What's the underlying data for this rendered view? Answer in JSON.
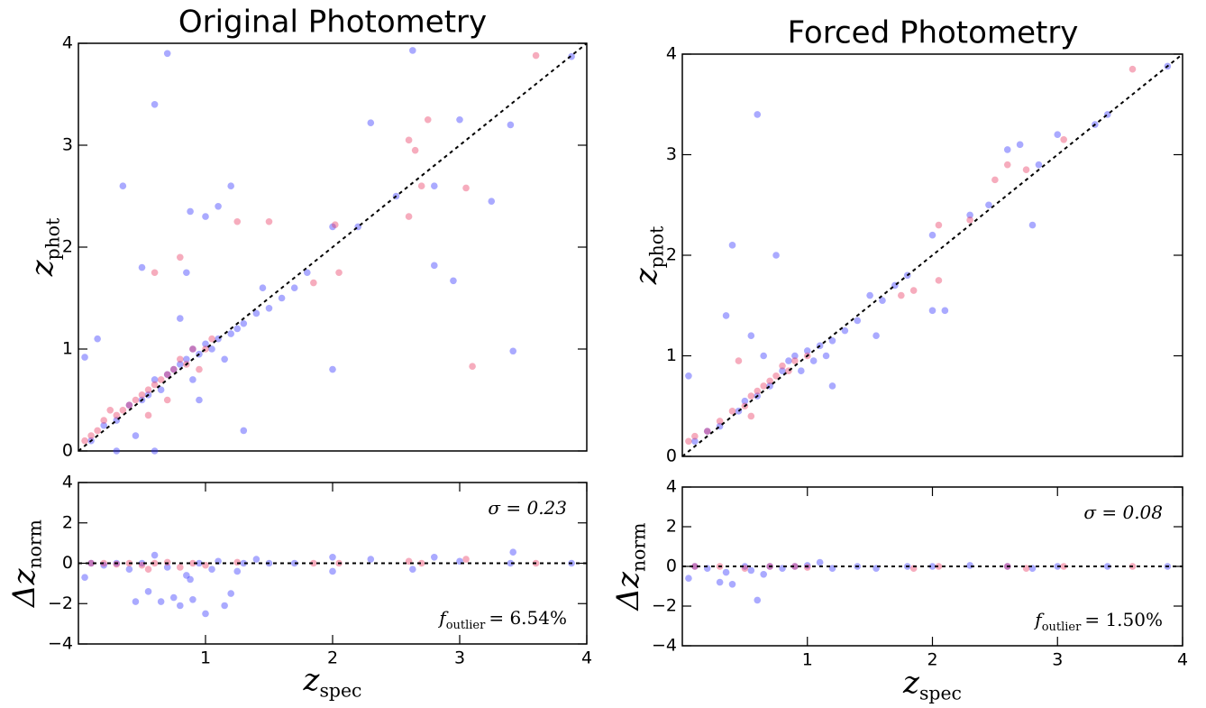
{
  "chart_data": [
    {
      "type": "scatter",
      "title": "Original Photometry",
      "ylabel": {
        "text": "z",
        "sub": "phot"
      },
      "xlim": [
        0,
        4
      ],
      "ylim": [
        0,
        4
      ],
      "yticks": [
        0,
        1,
        2,
        3,
        4
      ],
      "reference": "identity",
      "series": [
        {
          "color": "#2a2aff",
          "x": [
            0.05,
            0.1,
            0.2,
            0.3,
            0.35,
            0.4,
            0.45,
            0.5,
            0.55,
            0.6,
            0.6,
            0.65,
            0.7,
            0.7,
            0.75,
            0.8,
            0.8,
            0.85,
            0.85,
            0.88,
            0.9,
            0.9,
            0.95,
            0.95,
            1.0,
            1.0,
            1.05,
            1.1,
            1.1,
            1.15,
            1.2,
            1.2,
            1.25,
            1.3,
            1.3,
            1.4,
            1.45,
            1.5,
            1.6,
            1.7,
            1.8,
            2.0,
            2.0,
            2.2,
            2.3,
            2.5,
            2.63,
            2.8,
            2.8,
            2.95,
            3.0,
            3.25,
            3.4,
            3.42,
            3.88,
            0.15,
            0.5,
            0.6,
            0.3
          ],
          "values": [
            0.92,
            0.1,
            0.25,
            0.3,
            2.6,
            0.45,
            0.15,
            0.5,
            0.55,
            3.4,
            0.7,
            0.6,
            3.9,
            0.75,
            0.8,
            1.3,
            0.85,
            1.75,
            0.9,
            2.35,
            0.7,
            1.0,
            0.95,
            0.5,
            1.05,
            2.3,
            1.0,
            1.1,
            2.4,
            0.9,
            1.15,
            2.6,
            1.2,
            1.25,
            0.2,
            1.35,
            1.6,
            1.4,
            1.5,
            1.6,
            1.75,
            2.2,
            0.8,
            2.2,
            3.22,
            2.5,
            3.93,
            2.6,
            1.82,
            1.67,
            3.25,
            2.45,
            3.2,
            0.98,
            3.87,
            1.1,
            1.8,
            0.0,
            0.0
          ]
        },
        {
          "color": "#e8305a",
          "x": [
            0.05,
            0.1,
            0.15,
            0.2,
            0.25,
            0.3,
            0.35,
            0.4,
            0.45,
            0.5,
            0.55,
            0.6,
            0.6,
            0.65,
            0.7,
            0.7,
            0.75,
            0.8,
            0.8,
            0.85,
            0.9,
            0.95,
            1.0,
            1.05,
            1.25,
            1.5,
            1.85,
            2.02,
            2.05,
            2.6,
            2.65,
            2.7,
            2.75,
            2.6,
            3.1,
            3.05,
            3.6,
            0.55
          ],
          "values": [
            0.1,
            0.15,
            0.2,
            0.3,
            0.4,
            0.35,
            0.4,
            0.45,
            0.5,
            0.55,
            0.6,
            1.75,
            0.65,
            0.7,
            0.75,
            0.5,
            0.8,
            1.9,
            0.9,
            0.85,
            1.0,
            0.8,
            1.0,
            1.1,
            2.25,
            2.25,
            1.65,
            2.22,
            1.75,
            3.05,
            2.95,
            2.6,
            3.25,
            2.3,
            0.83,
            2.58,
            3.88,
            0.35
          ]
        }
      ]
    },
    {
      "type": "scatter",
      "ylabel": {
        "text": "Δz",
        "sub": "norm"
      },
      "xlabel": {
        "text": "z",
        "sub": "spec"
      },
      "xlim": [
        0,
        4
      ],
      "ylim": [
        -4,
        4
      ],
      "xticks": [
        1,
        2,
        3,
        4
      ],
      "yticks": [
        {
          "value": -4,
          "label": "−4"
        },
        {
          "value": -2,
          "label": "−2"
        },
        0,
        2,
        4
      ],
      "reference": "zero",
      "annotations": [
        {
          "text": "σ = 0.23"
        },
        {
          "text": "f",
          "sub": "outlier",
          "after": "= 6.54%"
        }
      ],
      "series": [
        {
          "color": "#2a2aff",
          "x": [
            0.1,
            0.2,
            0.3,
            0.4,
            0.5,
            0.55,
            0.6,
            0.65,
            0.7,
            0.75,
            0.8,
            0.85,
            0.88,
            0.9,
            0.95,
            1.0,
            1.05,
            1.1,
            1.15,
            1.2,
            1.25,
            1.3,
            1.4,
            1.5,
            1.7,
            2.0,
            2.0,
            2.3,
            2.63,
            2.8,
            3.0,
            3.42,
            3.4,
            3.88,
            0.45,
            0.05
          ],
          "values": [
            0.0,
            -0.1,
            0.0,
            -0.3,
            0.0,
            -1.4,
            0.4,
            -1.9,
            -0.2,
            -1.7,
            -2.1,
            -0.6,
            -0.8,
            -1.8,
            0.0,
            -2.5,
            -0.3,
            0.1,
            -2.1,
            -1.5,
            -0.4,
            0.0,
            0.2,
            0.0,
            0.0,
            0.3,
            -0.4,
            0.2,
            -0.3,
            0.3,
            0.1,
            0.55,
            0.0,
            0.0,
            -1.9,
            -0.7
          ]
        },
        {
          "color": "#e8305a",
          "x": [
            0.1,
            0.2,
            0.3,
            0.4,
            0.5,
            0.6,
            0.7,
            0.8,
            0.9,
            1.0,
            1.25,
            1.85,
            2.05,
            2.6,
            2.7,
            3.05,
            3.6,
            0.55
          ],
          "values": [
            0.0,
            0.0,
            -0.05,
            0.0,
            -0.1,
            0.0,
            0.05,
            -0.2,
            0.0,
            -0.1,
            0.05,
            0.0,
            0.0,
            0.1,
            0.0,
            0.2,
            0.0,
            -0.3
          ]
        }
      ]
    },
    {
      "type": "scatter",
      "title": "Forced Photometry",
      "ylabel": {
        "text": "z",
        "sub": "phot"
      },
      "xlim": [
        0,
        4
      ],
      "ylim": [
        0,
        4
      ],
      "yticks": [
        0,
        1,
        2,
        3,
        4
      ],
      "reference": "identity",
      "series": [
        {
          "color": "#2a2aff",
          "x": [
            0.05,
            0.1,
            0.2,
            0.3,
            0.35,
            0.4,
            0.45,
            0.5,
            0.55,
            0.6,
            0.6,
            0.65,
            0.7,
            0.75,
            0.8,
            0.85,
            0.9,
            0.95,
            1.0,
            1.05,
            1.1,
            1.15,
            1.2,
            1.3,
            1.4,
            1.5,
            1.6,
            1.7,
            1.8,
            2.0,
            2.0,
            2.1,
            2.3,
            2.45,
            2.6,
            2.7,
            2.85,
            2.8,
            3.0,
            3.3,
            3.4,
            3.88,
            1.55,
            1.2
          ],
          "values": [
            0.8,
            0.15,
            0.25,
            0.3,
            1.4,
            2.1,
            0.45,
            0.55,
            1.2,
            3.4,
            0.6,
            1.0,
            0.7,
            2.0,
            0.85,
            0.95,
            1.0,
            0.85,
            1.05,
            0.95,
            1.1,
            1.0,
            1.15,
            1.25,
            1.35,
            1.6,
            1.55,
            1.7,
            1.8,
            2.2,
            1.45,
            1.45,
            2.4,
            2.5,
            3.05,
            3.1,
            2.9,
            2.3,
            3.2,
            3.3,
            3.4,
            3.88,
            1.2,
            0.7
          ]
        },
        {
          "color": "#e8305a",
          "x": [
            0.05,
            0.1,
            0.2,
            0.3,
            0.4,
            0.5,
            0.55,
            0.6,
            0.65,
            0.7,
            0.75,
            0.8,
            0.85,
            0.9,
            1.0,
            0.45,
            0.55,
            1.75,
            1.85,
            2.05,
            2.05,
            2.3,
            2.5,
            2.6,
            2.75,
            3.05,
            3.6
          ],
          "values": [
            0.15,
            0.2,
            0.25,
            0.35,
            0.45,
            0.5,
            0.6,
            0.65,
            0.7,
            0.75,
            0.8,
            0.9,
            0.85,
            0.95,
            1.0,
            0.95,
            0.4,
            1.6,
            1.65,
            2.3,
            1.75,
            2.35,
            2.75,
            2.9,
            2.85,
            3.15,
            3.85
          ]
        }
      ]
    },
    {
      "type": "scatter",
      "ylabel": {
        "text": "Δz",
        "sub": "norm"
      },
      "xlabel": {
        "text": "z",
        "sub": "spec"
      },
      "xlim": [
        0,
        4
      ],
      "ylim": [
        -4,
        4
      ],
      "xticks": [
        1,
        2,
        3,
        4
      ],
      "yticks": [
        {
          "value": -4,
          "label": "−4"
        },
        {
          "value": -2,
          "label": "−2"
        },
        0,
        2,
        4
      ],
      "reference": "zero",
      "annotations": [
        {
          "text": "σ = 0.08"
        },
        {
          "text": "f",
          "sub": "outlier",
          "after": "= 1.50%"
        }
      ],
      "series": [
        {
          "color": "#2a2aff",
          "x": [
            0.05,
            0.1,
            0.2,
            0.3,
            0.35,
            0.4,
            0.5,
            0.55,
            0.6,
            0.65,
            0.7,
            0.8,
            0.9,
            1.0,
            1.1,
            1.2,
            1.4,
            1.55,
            1.8,
            2.0,
            2.3,
            2.6,
            2.8,
            3.0,
            3.4,
            3.88
          ],
          "values": [
            -0.6,
            0.0,
            -0.1,
            -0.8,
            -0.3,
            -0.9,
            0.0,
            -0.2,
            -1.7,
            -0.4,
            0.0,
            -0.1,
            0.0,
            0.05,
            0.2,
            -0.1,
            0.0,
            -0.1,
            0.0,
            0.0,
            0.05,
            0.0,
            -0.1,
            0.0,
            0.0,
            0.0
          ]
        },
        {
          "color": "#e8305a",
          "x": [
            0.1,
            0.3,
            0.5,
            0.7,
            0.9,
            1.0,
            1.85,
            2.05,
            2.6,
            2.75,
            3.05,
            3.6
          ],
          "values": [
            0.0,
            0.0,
            -0.1,
            0.0,
            0.0,
            -0.05,
            -0.1,
            0.0,
            0.0,
            -0.1,
            0.0,
            0.0
          ]
        }
      ]
    }
  ]
}
